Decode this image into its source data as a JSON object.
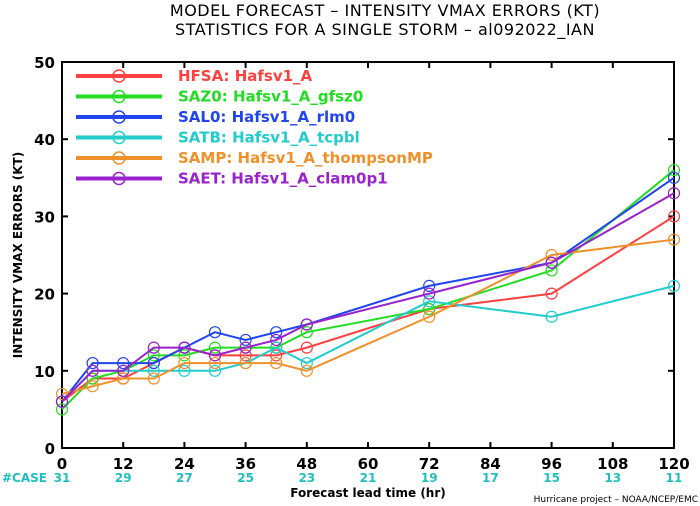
{
  "chart_data": {
    "type": "line",
    "title": "MODEL FORECAST – INTENSITY VMAX ERRORS (KT)",
    "subtitle": "STATISTICS FOR A SINGLE STORM – al092022_IAN",
    "xlabel": "Forecast lead time (hr)",
    "ylabel": "INTENSITY VMAX ERRORS (KT)",
    "xlim": [
      0,
      120
    ],
    "ylim": [
      0,
      50
    ],
    "x_ticks": [
      0,
      12,
      24,
      36,
      48,
      60,
      72,
      84,
      96,
      108,
      120
    ],
    "y_ticks": [
      0,
      10,
      20,
      30,
      40,
      50
    ],
    "x": [
      0,
      6,
      12,
      18,
      24,
      30,
      36,
      42,
      48,
      72,
      96,
      120
    ],
    "case_label": "#CASE",
    "case_x": [
      0,
      12,
      24,
      36,
      48,
      60,
      72,
      84,
      96,
      108,
      120
    ],
    "case_counts": [
      "31",
      "29",
      "27",
      "25",
      "23",
      "21",
      "19",
      "17",
      "15",
      "13",
      "11"
    ],
    "footer": "Hurricane project – NOAA/NCEP/EMC",
    "legend_position": "top-left",
    "series": [
      {
        "id": "HFSA",
        "name": "Hafsv1_A",
        "color": "#ff4040",
        "values": [
          6,
          9,
          9,
          11,
          13,
          12,
          12,
          12,
          13,
          18,
          20,
          30
        ]
      },
      {
        "id": "SAZ0",
        "name": "Hafsv1_A_gfsz0",
        "color": "#22dd22",
        "values": [
          5,
          9,
          10,
          12,
          12,
          13,
          13,
          13,
          15,
          18,
          23,
          36
        ]
      },
      {
        "id": "SAL0",
        "name": "Hafsv1_A_rlm0",
        "color": "#2244ee",
        "values": [
          6,
          11,
          11,
          11,
          13,
          15,
          14,
          15,
          16,
          21,
          24,
          35
        ]
      },
      {
        "id": "SATB",
        "name": "Hafsv1_A_tcpbl",
        "color": "#22cccc",
        "values": [
          6,
          10,
          10,
          10,
          10,
          10,
          11,
          13,
          11,
          19,
          17,
          21
        ]
      },
      {
        "id": "SAMP",
        "name": "Hafsv1_A_thompsonMP",
        "color": "#f0902a",
        "values": [
          7,
          8,
          9,
          9,
          11,
          11,
          11,
          11,
          10,
          17,
          25,
          27
        ]
      },
      {
        "id": "SAET",
        "name": "Hafsv1_A_clam0p1",
        "color": "#9922cc",
        "values": [
          6,
          10,
          10,
          13,
          13,
          12,
          13,
          14,
          16,
          20,
          24,
          33
        ]
      }
    ]
  }
}
